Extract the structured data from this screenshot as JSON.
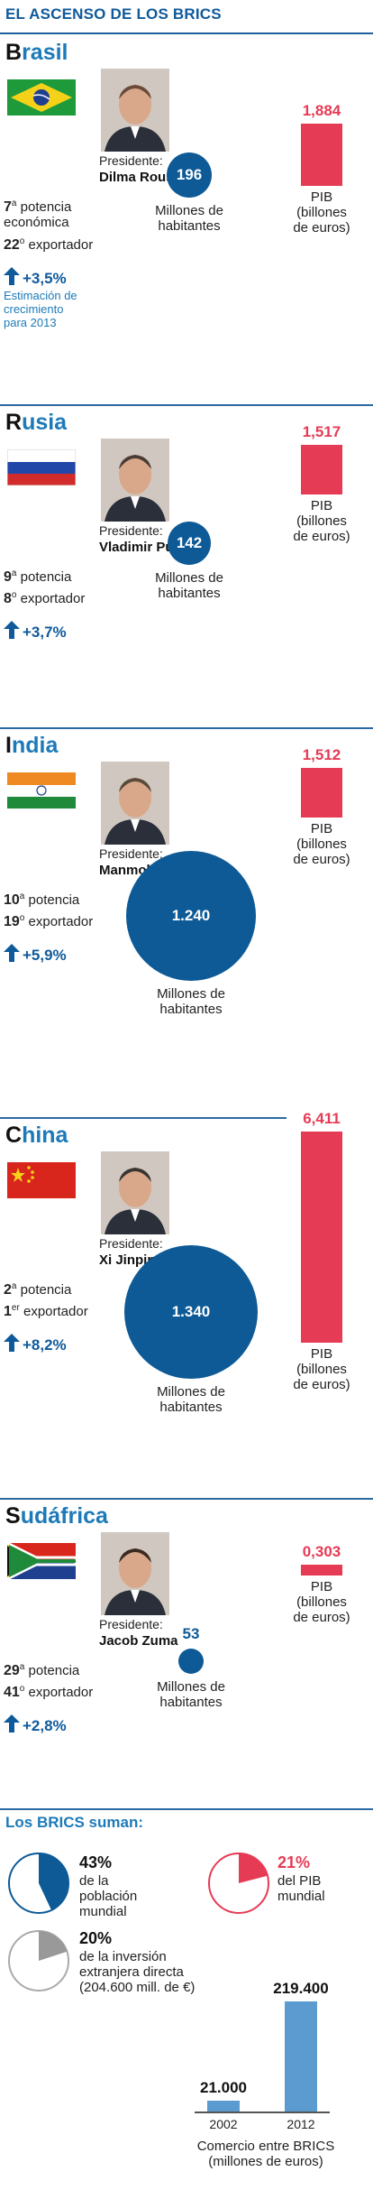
{
  "title": "EL ASCENSO DE LOS BRICS",
  "labels": {
    "president": "Presidente:",
    "pop_line1": "Millones de",
    "pop_line2": "habitantes",
    "gdp_line1": "PIB",
    "gdp_line2": "(billones",
    "gdp_line3": "de euros)"
  },
  "countries": [
    {
      "name_first": "B",
      "name_rest": "rasil",
      "president": "Dilma Rousseff",
      "rank_num": "7",
      "rank_sup": "a",
      "rank_text": " potencia",
      "rank_text2": "económica",
      "export_num": "22",
      "export_sup": "o",
      "export_text": " exportador",
      "growth": "+3,5%",
      "note_lines": [
        "Estimación de",
        "crecimiento",
        "para 2013"
      ],
      "population_label": "196",
      "gdp_label": "1,884"
    },
    {
      "name_first": "R",
      "name_rest": "usia",
      "president": "Vladimir Putin",
      "rank_num": "9",
      "rank_sup": "a",
      "rank_text": " potencia",
      "export_num": "8",
      "export_sup": "o",
      "export_text": " exportador",
      "growth": "+3,7%",
      "population_label": "142",
      "gdp_label": "1,517"
    },
    {
      "name_first": "I",
      "name_rest": "ndia",
      "president": "Manmohan Singh",
      "rank_num": "10",
      "rank_sup": "a",
      "rank_text": " potencia",
      "export_num": "19",
      "export_sup": "o",
      "export_text": " exportador",
      "growth": "+5,9%",
      "population_label": "1.240",
      "gdp_label": "1,512"
    },
    {
      "name_first": "C",
      "name_rest": "hina",
      "president": "Xi Jinping",
      "rank_num": "2",
      "rank_sup": "a",
      "rank_text": " potencia",
      "export_num": "1",
      "export_sup": "er",
      "export_text": " exportador",
      "growth": "+8,2%",
      "population_label": "1.340",
      "gdp_label": "6,411"
    },
    {
      "name_first": "S",
      "name_rest": "udáfrica",
      "president": "Jacob Zuma",
      "rank_num": "29",
      "rank_sup": "a",
      "rank_text": " potencia",
      "export_num": "41",
      "export_sup": "o",
      "export_text": " exportador",
      "growth": "+2,8%",
      "population_label": "53",
      "gdp_label": "0,303"
    }
  ],
  "summary": {
    "title": "Los BRICS suman:",
    "pop_pct": "43%",
    "pop_text": [
      "de la",
      "población",
      "mundial"
    ],
    "gdp_pct": "21%",
    "gdp_text": [
      "del PIB",
      "mundial"
    ],
    "inv_pct": "20%",
    "inv_text": [
      "de la inversión",
      "extranjera directa",
      "(204.600 mill. de €)"
    ],
    "trade_label": [
      "Comercio entre BRICS",
      "(millones de euros)"
    ]
  },
  "colors": {
    "title_blue": "#0f5a9b",
    "country_blue": "#1d7ab8",
    "bubble_blue": "#0d5a96",
    "gdp_red": "#e63b54",
    "trade_blue": "#5b9bd0",
    "investment_gray": "#999999"
  },
  "chart_data": [
    {
      "type": "bar",
      "categories": [
        "Brasil",
        "Rusia",
        "India",
        "China",
        "Sudáfrica"
      ],
      "values": [
        1.884,
        1.517,
        1.512,
        6.411,
        0.303
      ],
      "ylabel": "PIB (billones de euros)"
    },
    {
      "type": "scatter",
      "categories": [
        "Brasil",
        "Rusia",
        "India",
        "China",
        "Sudáfrica"
      ],
      "values": [
        196,
        142,
        1240,
        1340,
        53
      ],
      "ylabel": "Millones de habitantes"
    },
    {
      "type": "pie",
      "categories": [
        "población mundial"
      ],
      "values": [
        43
      ]
    },
    {
      "type": "pie",
      "categories": [
        "PIB mundial"
      ],
      "values": [
        21
      ]
    },
    {
      "type": "pie",
      "categories": [
        "inversión extranjera directa"
      ],
      "values": [
        20
      ]
    },
    {
      "type": "bar",
      "categories": [
        "2002",
        "2012"
      ],
      "values": [
        21000,
        219400
      ],
      "xlabel": "Comercio entre BRICS",
      "ylabel": "millones de euros"
    }
  ]
}
